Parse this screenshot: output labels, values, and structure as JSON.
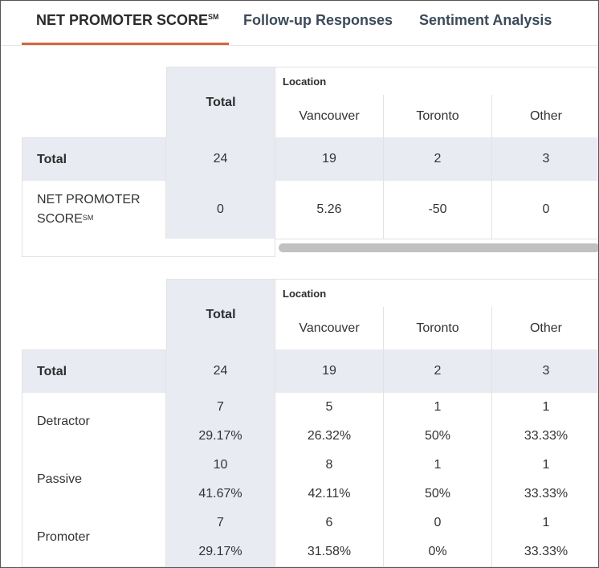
{
  "tabs": [
    {
      "label": "NET PROMOTER SCORE",
      "sup": "SM",
      "active": true
    },
    {
      "label": "Follow-up Responses",
      "active": false
    },
    {
      "label": "Sentiment Analysis",
      "active": false
    }
  ],
  "colors": {
    "accent": "#d5663b",
    "shade": "#e8ebf2"
  },
  "nps_table": {
    "total_header": "Total",
    "group_label": "Location",
    "columns": [
      "Vancouver",
      "Toronto",
      "Other"
    ],
    "rows": [
      {
        "label": "Total",
        "values": [
          "24",
          "19",
          "2",
          "3"
        ]
      },
      {
        "label_line1": "NET PROMOTER",
        "label_line2": "SCORE",
        "label_sup": "SM",
        "values": [
          "0",
          "5.26",
          "-50",
          "0"
        ]
      }
    ]
  },
  "breakdown_table": {
    "total_header": "Total",
    "group_label": "Location",
    "columns": [
      "Vancouver",
      "Toronto",
      "Other"
    ],
    "total_row": {
      "label": "Total",
      "values": [
        "24",
        "19",
        "2",
        "3"
      ]
    },
    "rows": [
      {
        "label": "Detractor",
        "counts": [
          "7",
          "5",
          "1",
          "1"
        ],
        "percents": [
          "29.17%",
          "26.32%",
          "50%",
          "33.33%"
        ]
      },
      {
        "label": "Passive",
        "counts": [
          "10",
          "8",
          "1",
          "1"
        ],
        "percents": [
          "41.67%",
          "42.11%",
          "50%",
          "33.33%"
        ]
      },
      {
        "label": "Promoter",
        "counts": [
          "7",
          "6",
          "0",
          "1"
        ],
        "percents": [
          "29.17%",
          "31.58%",
          "0%",
          "33.33%"
        ]
      }
    ]
  }
}
